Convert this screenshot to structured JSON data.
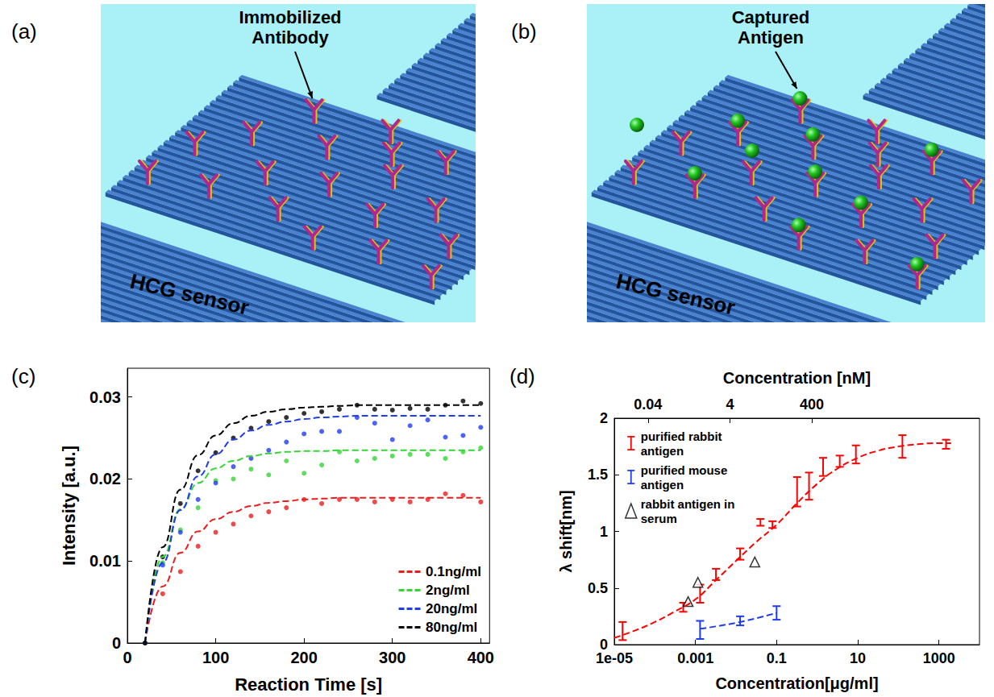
{
  "diagrams": [
    {
      "panel": "(a)",
      "label": "Immobilized Antibody",
      "sensor": "HCG sensor"
    },
    {
      "panel": "(b)",
      "label": "Captured Antigen",
      "sensor": "HCG sensor"
    }
  ],
  "chart_data": [
    {
      "panel": "(c)",
      "type": "scatter",
      "xlabel": "Reaction Time [s]",
      "ylabel": "Intensity [a.u.]",
      "xlim": [
        0,
        410
      ],
      "xticks": [
        0,
        100,
        200,
        300,
        400
      ],
      "ylim": [
        0,
        0.0335
      ],
      "yticks": [
        0,
        0.01,
        0.02,
        0.03
      ],
      "legend": "lower right",
      "x": [
        20,
        40,
        60,
        80,
        100,
        120,
        140,
        160,
        180,
        200,
        220,
        240,
        260,
        280,
        300,
        320,
        340,
        360,
        380,
        400
      ],
      "series": [
        {
          "name": "0.1ng/ml",
          "color": "#ee1c1c",
          "marker": "circle",
          "line_style": "dashed",
          "values": [
            0,
            0.006,
            0.0087,
            0.0118,
            0.0135,
            0.0145,
            0.0155,
            0.016,
            0.0165,
            0.0175,
            0.017,
            0.0175,
            0.0175,
            0.0172,
            0.0175,
            0.0172,
            0.0175,
            0.0182,
            0.018,
            0.0172
          ],
          "fit": [
            0,
            0.0069,
            0.011,
            0.0136,
            0.0151,
            0.016,
            0.0167,
            0.0171,
            0.0173,
            0.0175,
            0.0176,
            0.0177,
            0.0177,
            0.0177,
            0.0177,
            0.0177,
            0.0177,
            0.0177,
            0.0177,
            0.0177
          ]
        },
        {
          "name": "2ng/ml",
          "color": "#33d633",
          "marker": "circle",
          "line_style": "dashed",
          "values": [
            0,
            0.0098,
            0.0138,
            0.0165,
            0.0198,
            0.02,
            0.0212,
            0.0205,
            0.0222,
            0.0207,
            0.0217,
            0.0233,
            0.0222,
            0.0225,
            0.0228,
            0.023,
            0.023,
            0.0225,
            0.0233,
            0.0238
          ],
          "fit": [
            0,
            0.0105,
            0.0163,
            0.0195,
            0.0213,
            0.0222,
            0.0228,
            0.0231,
            0.0233,
            0.0234,
            0.0234,
            0.0235,
            0.0235,
            0.0235,
            0.0235,
            0.0235,
            0.0235,
            0.0235,
            0.0235,
            0.0235
          ]
        },
        {
          "name": "20ng/ml",
          "color": "#1f3cf0",
          "marker": "circle",
          "line_style": "dashed",
          "values": [
            0,
            0.0095,
            0.0135,
            0.0175,
            0.0195,
            0.0215,
            0.0225,
            0.0235,
            0.0245,
            0.0255,
            0.0258,
            0.0258,
            0.0275,
            0.0268,
            0.0248,
            0.0265,
            0.0272,
            0.0251,
            0.0253,
            0.0263
          ],
          "fit": [
            0,
            0.0098,
            0.0162,
            0.0203,
            0.023,
            0.0248,
            0.0259,
            0.0266,
            0.027,
            0.0273,
            0.0275,
            0.0276,
            0.0277,
            0.0277,
            0.0277,
            0.0277,
            0.0277,
            0.0277,
            0.0277,
            0.0277
          ]
        },
        {
          "name": "80ng/ml",
          "color": "#000000",
          "marker": "circle",
          "line_style": "dashed",
          "values": [
            0,
            0.0105,
            0.017,
            0.021,
            0.0232,
            0.025,
            0.0262,
            0.027,
            0.0275,
            0.028,
            0.0282,
            0.0285,
            0.029,
            0.0285,
            0.0284,
            0.0286,
            0.0285,
            0.029,
            0.0295,
            0.0292
          ],
          "fit": [
            0,
            0.0117,
            0.0187,
            0.0229,
            0.0253,
            0.0268,
            0.0277,
            0.0282,
            0.0285,
            0.0287,
            0.0288,
            0.0289,
            0.029,
            0.029,
            0.029,
            0.029,
            0.029,
            0.029,
            0.029,
            0.029
          ]
        }
      ]
    },
    {
      "panel": "(d)",
      "type": "scatter",
      "log": "x",
      "xlabel": "Concentration[μg/ml]",
      "x2label": "Concentration [nM]",
      "ylabel": "λ shift[nm]",
      "xlim": [
        1e-05,
        10000
      ],
      "xticks": [
        {
          "value": 1e-05,
          "label": "1e-05"
        },
        0.001,
        0.1,
        10,
        1000
      ],
      "x2lim": [
        0.006,
        5000000
      ],
      "x2ticks": [
        0.04,
        4,
        400
      ],
      "ylim": [
        0,
        2
      ],
      "yticks": [
        0,
        0.5,
        1,
        1.5,
        2
      ],
      "legend": "upper left",
      "series": [
        {
          "name": "purified rabbit antigen",
          "type": "errorbar",
          "color": "#ff0000",
          "line_style": "dashed",
          "x": [
            1.6e-05,
            0.0005,
            0.0013,
            0.0032,
            0.0126,
            0.04,
            0.079,
            0.32,
            0.63,
            1.4,
            3.6,
            9,
            126,
            1500
          ],
          "values": [
            0.12,
            0.33,
            0.45,
            0.62,
            0.8,
            1.08,
            1.06,
            1.35,
            1.4,
            1.57,
            1.62,
            1.68,
            1.75,
            1.77
          ],
          "errors": [
            0.08,
            0.04,
            0.08,
            0.05,
            0.05,
            0.03,
            0.03,
            0.13,
            0.12,
            0.08,
            0.05,
            0.08,
            0.1,
            0.04
          ],
          "fit_x": [
            1e-05,
            3e-05,
            0.0001,
            0.0003,
            0.001,
            0.003,
            0.01,
            0.03,
            0.1,
            0.3,
            1,
            3,
            10,
            30,
            100,
            300,
            1000,
            2000
          ],
          "fit": [
            0.06,
            0.12,
            0.2,
            0.29,
            0.4,
            0.56,
            0.74,
            0.9,
            1.06,
            1.24,
            1.42,
            1.55,
            1.65,
            1.71,
            1.75,
            1.77,
            1.78,
            1.78
          ]
        },
        {
          "name": "purified mouse antigen",
          "type": "errorbar",
          "color": "#1f3cf0",
          "line_style": "dashed",
          "x": [
            0.0013,
            0.0126,
            0.1
          ],
          "values": [
            0.13,
            0.21,
            0.28
          ],
          "errors": [
            0.08,
            0.04,
            0.06
          ],
          "fit_x": [
            0.0013,
            0.0126,
            0.1
          ],
          "fit": [
            0.14,
            0.2,
            0.28
          ]
        },
        {
          "name": "rabbit antigen in serum",
          "type": "scatter",
          "color": "#000000",
          "marker": "triangle",
          "x": [
            0.00066,
            0.00115,
            0.029
          ],
          "values": [
            0.38,
            0.55,
            0.73
          ]
        }
      ]
    }
  ]
}
